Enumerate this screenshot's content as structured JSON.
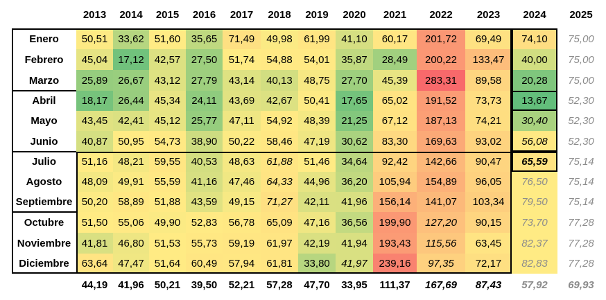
{
  "years": [
    "2013",
    "2014",
    "2015",
    "2016",
    "2017",
    "2018",
    "2019",
    "2020",
    "2021",
    "2022",
    "2023",
    "2024",
    "2025"
  ],
  "months": [
    "Enero",
    "Febrero",
    "Marzo",
    "Abril",
    "Mayo",
    "Junio",
    "Julio",
    "Agosto",
    "Septiembre",
    "Octubre",
    "Noviembre",
    "Diciembre"
  ],
  "values": [
    [
      "50,51",
      "33,62",
      "51,60",
      "35,65",
      "71,49",
      "49,98",
      "61,99",
      "41,10",
      "60,17",
      "201,72",
      "69,49",
      "74,10",
      "75,00"
    ],
    [
      "45,04",
      "17,12",
      "42,57",
      "27,50",
      "51,74",
      "54,88",
      "54,01",
      "35,87",
      "28,49",
      "200,22",
      "133,47",
      "40,00",
      "75,00"
    ],
    [
      "25,89",
      "26,67",
      "43,12",
      "27,79",
      "43,14",
      "40,13",
      "48,75",
      "27,70",
      "45,39",
      "283,31",
      "89,58",
      "20,28",
      "75,00"
    ],
    [
      "18,17",
      "26,44",
      "45,34",
      "24,11",
      "43,69",
      "42,67",
      "50,41",
      "17,65",
      "65,02",
      "191,52",
      "73,73",
      "13,67",
      "52,30"
    ],
    [
      "43,45",
      "42,41",
      "45,12",
      "25,77",
      "47,11",
      "54,92",
      "48,39",
      "21,25",
      "67,12",
      "187,13",
      "74,21",
      "30,40",
      "52,30"
    ],
    [
      "40,87",
      "50,95",
      "54,73",
      "38,90",
      "50,22",
      "58,46",
      "47,19",
      "30,62",
      "83,30",
      "169,63",
      "93,02",
      "56,08",
      "52,30"
    ],
    [
      "51,16",
      "48,21",
      "59,55",
      "40,53",
      "48,63",
      "61,88",
      "51,46",
      "34,64",
      "92,42",
      "142,66",
      "90,47",
      "65,59",
      "75,14"
    ],
    [
      "48,09",
      "49,91",
      "55,59",
      "41,16",
      "47,46",
      "64,33",
      "44,96",
      "36,20",
      "105,94",
      "154,89",
      "96,05",
      "76,50",
      "75,14"
    ],
    [
      "50,20",
      "58,89",
      "51,88",
      "43,59",
      "49,15",
      "71,27",
      "42,11",
      "41,96",
      "156,14",
      "141,07",
      "103,34",
      "79,50",
      "75,14"
    ],
    [
      "51,50",
      "55,06",
      "49,90",
      "52,83",
      "56,78",
      "65,09",
      "47,16",
      "36,56",
      "199,90",
      "127,20",
      "90,15",
      "73,70",
      "77,28"
    ],
    [
      "41,81",
      "46,80",
      "51,53",
      "55,73",
      "59,19",
      "61,97",
      "42,19",
      "41,94",
      "193,43",
      "115,56",
      "63,45",
      "82,37",
      "77,28"
    ],
    [
      "63,64",
      "47,47",
      "51,64",
      "60,49",
      "57,94",
      "61,81",
      "33,80",
      "41,97",
      "239,16",
      "97,35",
      "72,17",
      "82,83",
      "77,28"
    ]
  ],
  "totals": [
    "44,19",
    "41,96",
    "50,21",
    "39,50",
    "52,21",
    "57,28",
    "47,70",
    "33,95",
    "111,37",
    "167,69",
    "87,43",
    "57,92",
    "69,93"
  ],
  "styles": {
    "italic": [
      [
        4,
        11
      ],
      [
        5,
        11
      ],
      [
        6,
        5
      ],
      [
        6,
        11
      ],
      [
        7,
        5
      ],
      [
        8,
        5
      ],
      [
        9,
        9
      ],
      [
        10,
        9
      ],
      [
        11,
        7
      ],
      [
        11,
        9
      ],
      [
        7,
        11
      ],
      [
        8,
        11
      ],
      [
        9,
        11
      ],
      [
        10,
        11
      ],
      [
        11,
        11
      ]
    ],
    "bold": [
      [
        6,
        11
      ]
    ],
    "grey": [
      [
        7,
        11
      ],
      [
        8,
        11
      ],
      [
        9,
        11
      ],
      [
        10,
        11
      ],
      [
        11,
        11
      ]
    ],
    "italic_totals": [
      9,
      10,
      11,
      12
    ],
    "grey_totals": [
      11,
      12
    ]
  },
  "colors": {
    "low": "#63be7b",
    "mid": "#ffeb84",
    "high": "#f8696b",
    "forecast_fill": "#ffeb84",
    "border": "#000000",
    "grey_text": "#8c8c8c"
  }
}
